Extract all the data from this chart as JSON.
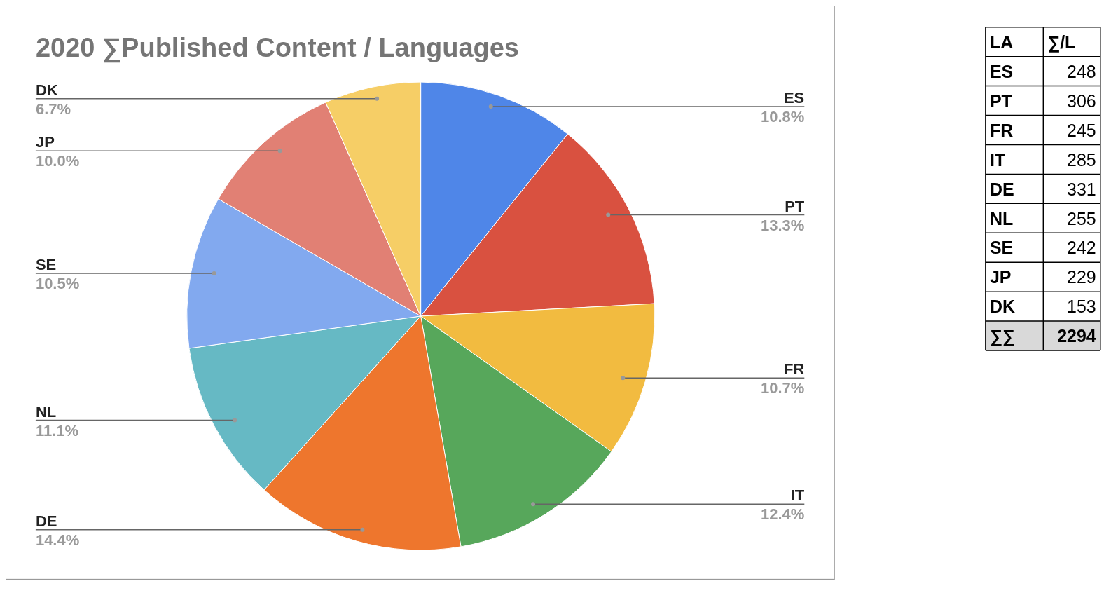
{
  "chart_data": {
    "type": "pie",
    "title": "2020 ∑Published Content / Languages",
    "categories": [
      "ES",
      "PT",
      "FR",
      "IT",
      "DE",
      "NL",
      "SE",
      "JP",
      "DK"
    ],
    "values": [
      10.81,
      13.34,
      10.68,
      12.42,
      14.43,
      11.12,
      10.55,
      9.98,
      6.67
    ],
    "value_labels": [
      "10.8%",
      "13.3%",
      "10.7%",
      "12.4%",
      "14.4%",
      "11.1%",
      "10.5%",
      "10.0%",
      "6.7%"
    ],
    "colors": [
      "#4f86e8",
      "#d95140",
      "#f2bb40",
      "#57a75b",
      "#ee762d",
      "#66b9c4",
      "#82a9ef",
      "#e18074",
      "#f6ce66"
    ],
    "annotations": [
      "LA",
      "∑/L",
      "248",
      "306",
      "245",
      "285",
      "331",
      "255",
      "242",
      "229",
      "153",
      "∑∑",
      "2294"
    ]
  }
}
